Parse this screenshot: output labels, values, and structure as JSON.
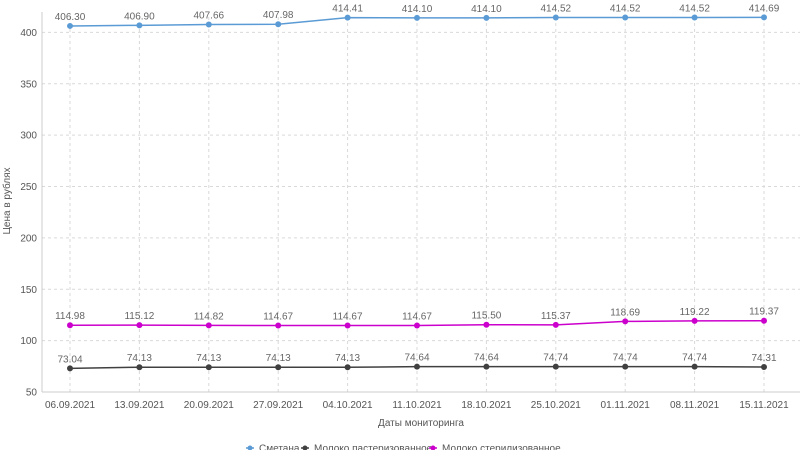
{
  "chart_data": {
    "type": "line",
    "title": "",
    "xlabel": "Даты мониторинга",
    "ylabel": "Цена в рублях",
    "ylim": [
      50,
      415
    ],
    "yticks": [
      50,
      100,
      150,
      200,
      250,
      300,
      350,
      400
    ],
    "grid": true,
    "legend_position": "bottom",
    "categories": [
      "06.09.2021",
      "13.09.2021",
      "20.09.2021",
      "27.09.2021",
      "04.10.2021",
      "11.10.2021",
      "18.10.2021",
      "25.10.2021",
      "01.11.2021",
      "08.11.2021",
      "15.11.2021"
    ],
    "series": [
      {
        "name": "Сметана",
        "color": "#5b9bd5",
        "values": [
          406.3,
          406.9,
          407.66,
          407.98,
          414.41,
          414.1,
          414.1,
          414.52,
          414.52,
          414.52,
          414.69
        ],
        "labels": [
          "406.30",
          "406.90",
          "407.66",
          "407.98",
          "414.41",
          "414.10",
          "414.10",
          "414.52",
          "414.52",
          "414.52",
          "414.69"
        ]
      },
      {
        "name": "Молоко пастеризованное",
        "color": "#404040",
        "values": [
          73.04,
          74.13,
          74.13,
          74.13,
          74.13,
          74.64,
          74.64,
          74.74,
          74.74,
          74.74,
          74.31
        ],
        "labels": [
          "73.04",
          "74.13",
          "74.13",
          "74.13",
          "74.13",
          "74.64",
          "74.64",
          "74.74",
          "74.74",
          "74.74",
          "74.31"
        ]
      },
      {
        "name": "Молоко стерилизованное",
        "color": "#cc00cc",
        "values": [
          114.98,
          115.12,
          114.82,
          114.67,
          114.67,
          114.67,
          115.5,
          115.37,
          118.69,
          119.22,
          119.37
        ],
        "labels": [
          "114.98",
          "115.12",
          "114.82",
          "114.67",
          "114.67",
          "114.67",
          "115.50",
          "115.37",
          "118.69",
          "119.22",
          "119.37"
        ]
      }
    ]
  }
}
